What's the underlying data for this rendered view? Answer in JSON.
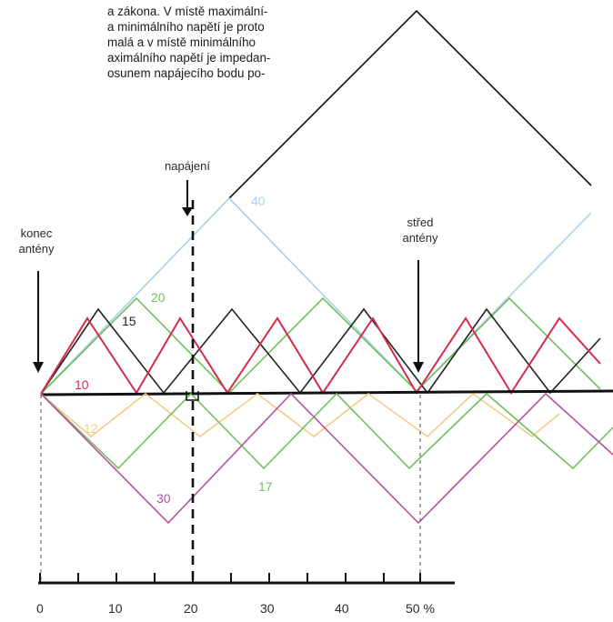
{
  "paragraph_lines": [
    "a zákona. V místě maximální-",
    "a minimálního napětí je proto",
    "malá a v místě minimálního",
    "aximálního napětí je impedan-",
    "osunem napájecího bodu po-"
  ],
  "labels": {
    "feed": "napájení",
    "antenna_end_line1": "konec",
    "antenna_end_line2": "antény",
    "antenna_center_line1": "střed",
    "antenna_center_line2": "antény"
  },
  "axis": {
    "ticks": [
      "0",
      "10",
      "20",
      "30",
      "40",
      "50 %"
    ]
  },
  "waves": [
    {
      "label": "10",
      "color": "#d42a4e"
    },
    {
      "label": "12",
      "color": "#f5c98a"
    },
    {
      "label": "15",
      "color": "#222222"
    },
    {
      "label": "17",
      "color": "#6fbf5a"
    },
    {
      "label": "20",
      "color": "#6fbf5a"
    },
    {
      "label": "30",
      "color": "#b5509e"
    },
    {
      "label": "40",
      "color": "#a8cfee"
    }
  ]
}
